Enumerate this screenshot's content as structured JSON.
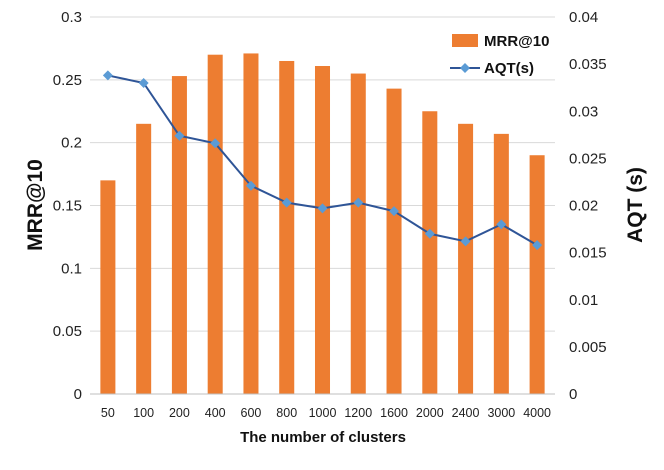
{
  "chart_data": {
    "type": "bar+line",
    "title": "",
    "xlabel": "The number of clusters",
    "categories": [
      "50",
      "100",
      "200",
      "400",
      "600",
      "800",
      "1000",
      "1200",
      "1600",
      "2000",
      "2400",
      "3000",
      "4000"
    ],
    "y_left": {
      "label": "MRR@10",
      "lim": [
        0,
        0.3
      ],
      "ticks": [
        "0",
        "0.05",
        "0.1",
        "0.15",
        "0.2",
        "0.25",
        "0.3"
      ]
    },
    "y_right": {
      "label": "AQT (s)",
      "lim": [
        0,
        0.04
      ],
      "ticks": [
        "0",
        "0.005",
        "0.01",
        "0.015",
        "0.02",
        "0.025",
        "0.03",
        "0.035",
        "0.04"
      ]
    },
    "series": [
      {
        "name": "MRR@10",
        "type": "bar",
        "axis": "left",
        "color": "#ED7D31",
        "values": [
          0.17,
          0.215,
          0.253,
          0.27,
          0.271,
          0.265,
          0.261,
          0.255,
          0.243,
          0.225,
          0.215,
          0.207,
          0.19
        ]
      },
      {
        "name": "AQT(s)",
        "type": "line",
        "axis": "right",
        "color": "#2F5597",
        "marker_color": "#5B9BD5",
        "values": [
          0.0338,
          0.033,
          0.0274,
          0.0266,
          0.0221,
          0.0203,
          0.0197,
          0.0203,
          0.0194,
          0.017,
          0.0162,
          0.018,
          0.0158
        ]
      }
    ],
    "grid": true,
    "legend": "top-right"
  }
}
